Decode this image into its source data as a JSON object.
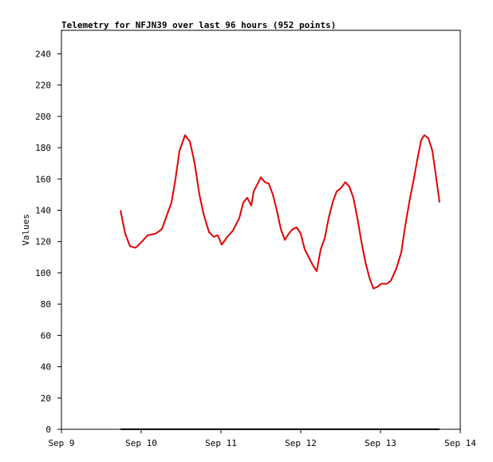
{
  "chart_data": {
    "type": "line",
    "title": "Telemetry for NFJN39 over last 96 hours (952 points)",
    "y_label": "Values",
    "xlim": [
      9,
      14
    ],
    "xticks": [
      {
        "value": 9,
        "label": "Sep 9"
      },
      {
        "value": 10,
        "label": "Sep 10"
      },
      {
        "value": 11,
        "label": "Sep 11"
      },
      {
        "value": 12,
        "label": "Sep 12"
      },
      {
        "value": 13,
        "label": "Sep 13"
      },
      {
        "value": 14,
        "label": "Sep 14"
      }
    ],
    "ylim": [
      0,
      255
    ],
    "yticks": [
      0,
      20,
      40,
      60,
      80,
      100,
      120,
      140,
      160,
      180,
      200,
      220,
      240
    ],
    "series": [
      {
        "color": "#e00000",
        "x": [
          9.74,
          9.8,
          9.86,
          9.93,
          10.01,
          10.08,
          10.18,
          10.26,
          10.33,
          10.38,
          10.43,
          10.48,
          10.55,
          10.61,
          10.67,
          10.73,
          10.78,
          10.85,
          10.91,
          10.96,
          11.01,
          11.08,
          11.15,
          11.23,
          11.28,
          11.33,
          11.38,
          11.41,
          11.46,
          11.5,
          11.55,
          11.6,
          11.65,
          11.7,
          11.75,
          11.8,
          11.85,
          11.9,
          11.95,
          12.0,
          12.05,
          12.1,
          12.15,
          12.2,
          12.25,
          12.3,
          12.35,
          12.4,
          12.45,
          12.5,
          12.56,
          12.61,
          12.66,
          12.71,
          12.76,
          12.81,
          12.86,
          12.91,
          12.96,
          13.01,
          13.08,
          13.13,
          13.2,
          13.26,
          13.31,
          13.36,
          13.41,
          13.46,
          13.51,
          13.55,
          13.6,
          13.65,
          13.7,
          13.74
        ],
        "values": [
          140,
          125,
          117,
          116,
          120,
          124,
          125,
          128,
          138,
          145,
          160,
          178,
          188,
          184,
          170,
          150,
          138,
          126,
          123,
          124,
          118,
          123,
          127,
          135,
          145,
          148,
          143,
          152,
          157,
          161,
          158,
          157,
          150,
          140,
          128,
          121,
          125,
          128,
          129,
          125,
          115,
          110,
          105,
          101,
          115,
          122,
          135,
          145,
          152,
          154,
          158,
          155,
          148,
          135,
          120,
          107,
          97,
          90,
          91,
          93,
          93,
          95,
          103,
          113,
          130,
          145,
          158,
          172,
          185,
          188,
          186,
          178,
          160,
          145
        ]
      },
      {
        "color": "#000000",
        "x": [
          9.74,
          13.74
        ],
        "values": [
          0,
          0
        ]
      }
    ]
  }
}
